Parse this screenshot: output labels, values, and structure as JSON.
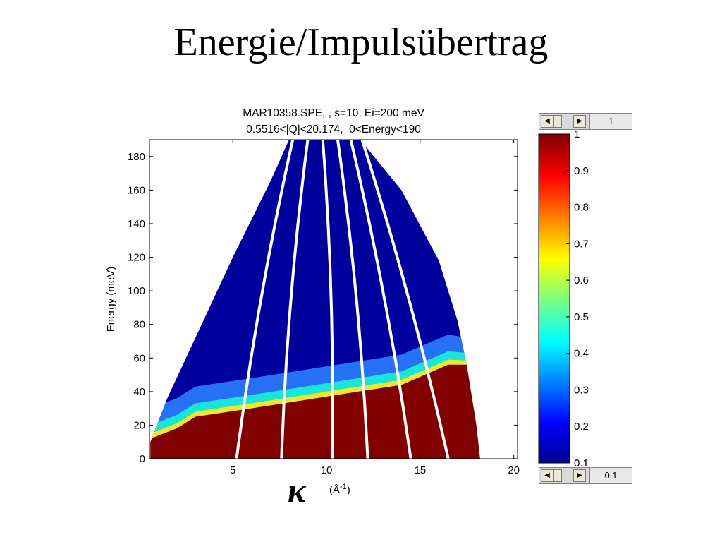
{
  "slide": {
    "title": "Energie/Impulsübertrag"
  },
  "chart_data": {
    "type": "heatmap",
    "title_lines": [
      "MAR10358.SPE, , s=10, Ei=200 meV",
      "0.5516<|Q|<20.174,  0<Energy<190"
    ],
    "ylabel": "Energy (meV)",
    "xlabel_symbol": "κ",
    "xlabel_unit_base": "(Å",
    "xlabel_unit_exp": "-1",
    "xlabel_unit_close": ")",
    "xlim": [
      0.55,
      20.2
    ],
    "ylim": [
      0,
      190
    ],
    "xticks": [
      5,
      10,
      15,
      20
    ],
    "yticks": [
      0,
      20,
      40,
      60,
      80,
      100,
      120,
      140,
      160,
      180
    ],
    "coverage_boundary": {
      "left": [
        [
          0.6,
          10
        ],
        [
          1.5,
          36
        ],
        [
          3,
          72
        ],
        [
          5,
          120
        ],
        [
          7,
          165
        ],
        [
          8,
          190
        ]
      ],
      "right": [
        [
          11.8,
          190
        ],
        [
          14,
          160
        ],
        [
          16,
          118
        ],
        [
          17,
          82
        ],
        [
          17.5,
          55
        ],
        [
          18,
          20
        ],
        [
          18.2,
          0
        ]
      ]
    },
    "detector_gaps_kappa_at_E0": [
      5.2,
      7.6,
      10.3,
      12.2,
      14.5,
      16.5
    ],
    "detector_gaps_kappa_at_Emax": [
      8.2,
      9.0,
      9.8,
      10.6,
      11.3,
      11.9
    ],
    "intensity_zones": [
      {
        "description": "elastic / low-energy region",
        "energy_below": [
          [
            0.6,
            12
          ],
          [
            2,
            18
          ],
          [
            3,
            25
          ],
          [
            6,
            30
          ],
          [
            10,
            37
          ],
          [
            14,
            44
          ],
          [
            16.5,
            56
          ]
        ],
        "intensity": 1
      },
      {
        "description": "transition band",
        "intensity_range": [
          0.35,
          0.6
        ]
      },
      {
        "description": "high-energy background",
        "intensity": 0.15
      }
    ],
    "colorbar": {
      "min": 0.1,
      "max": 1,
      "ticks": [
        "0.1",
        "0.2",
        "0.3",
        "0.4",
        "0.5",
        "0.6",
        "0.7",
        "0.8",
        "0.9",
        "1"
      ],
      "colormap": "jet",
      "scroll_top_value": "1",
      "scroll_bottom_value": "0.1"
    },
    "colors": {
      "low": "#00009c",
      "high": "#800000",
      "gap": "#ffffff",
      "axis": "#000000"
    }
  }
}
